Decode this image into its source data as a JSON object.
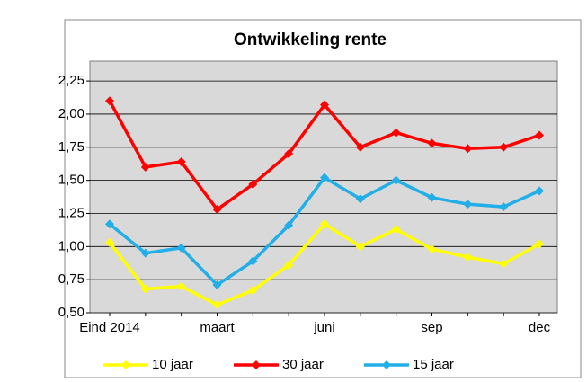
{
  "chart_data": {
    "type": "line",
    "title": "Ontwikkeling rente",
    "categories": [
      "Eind 2014",
      null,
      null,
      "maart",
      null,
      null,
      "juni",
      null,
      null,
      "sep",
      null,
      null,
      "dec"
    ],
    "series": [
      {
        "name": "10 jaar",
        "color": "#ffff00",
        "values": [
          1.03,
          0.68,
          0.7,
          0.56,
          0.67,
          0.86,
          1.17,
          1.0,
          1.13,
          0.98,
          0.92,
          0.87,
          1.02
        ]
      },
      {
        "name": "30 jaar",
        "color": "#ff0000",
        "values": [
          2.1,
          1.6,
          1.64,
          1.28,
          1.47,
          1.7,
          2.07,
          1.75,
          1.86,
          1.78,
          1.74,
          1.75,
          1.84
        ]
      },
      {
        "name": "15 jaar",
        "color": "#22aee6",
        "values": [
          1.17,
          0.95,
          0.99,
          0.71,
          0.89,
          1.16,
          1.52,
          1.36,
          1.5,
          1.37,
          1.32,
          1.3,
          1.42
        ]
      }
    ],
    "ylim": [
      0.5,
      2.4
    ],
    "yticks": [
      {
        "value": 0.5,
        "label": "0,50"
      },
      {
        "value": 0.75,
        "label": "0,75"
      },
      {
        "value": 1.0,
        "label": "1,00"
      },
      {
        "value": 1.25,
        "label": "1,25"
      },
      {
        "value": 1.5,
        "label": "1,50"
      },
      {
        "value": 1.75,
        "label": "1,75"
      },
      {
        "value": 2.0,
        "label": "2,00"
      },
      {
        "value": 2.25,
        "label": "2,25"
      }
    ],
    "grid": true,
    "legend": "bottom"
  }
}
